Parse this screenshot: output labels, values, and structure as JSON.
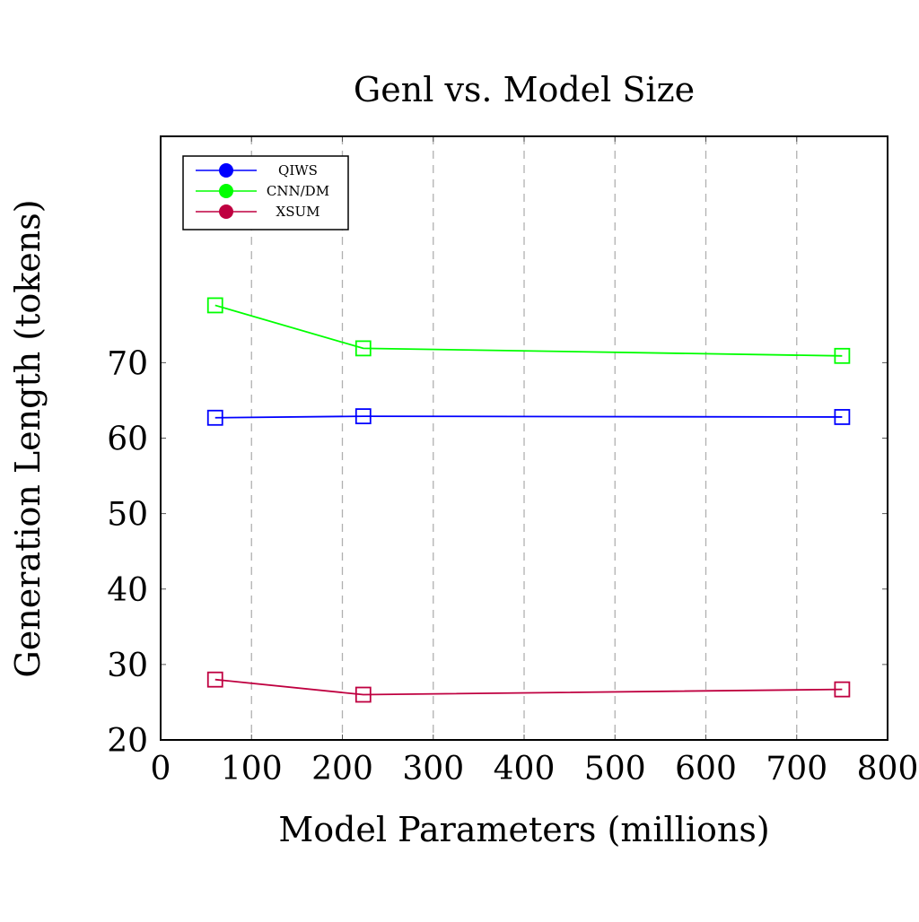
{
  "chart_data": {
    "type": "line",
    "title": "Genl vs. Model Size",
    "xlabel": "Model Parameters (millions)",
    "ylabel": "Generation Length (tokens)",
    "xlim": [
      0,
      800
    ],
    "ylim": [
      20,
      100
    ],
    "xticks": [
      0,
      100,
      200,
      300,
      400,
      500,
      600,
      700,
      800
    ],
    "yticks": [
      20,
      30,
      40,
      50,
      60,
      70
    ],
    "grid": "vertical dashed",
    "legend_position": "top-left",
    "marker": "square",
    "series": [
      {
        "name": "QIWS",
        "color": "#0000ff",
        "x": [
          60,
          223,
          750
        ],
        "y": [
          62.7,
          62.9,
          62.8
        ]
      },
      {
        "name": "CNN/DM",
        "color": "#00ff00",
        "x": [
          60,
          223,
          750
        ],
        "y": [
          77.6,
          71.9,
          70.9
        ]
      },
      {
        "name": "XSUM",
        "color": "#bf0040",
        "x": [
          60,
          223,
          750
        ],
        "y": [
          28.0,
          26.0,
          26.7
        ]
      }
    ]
  }
}
